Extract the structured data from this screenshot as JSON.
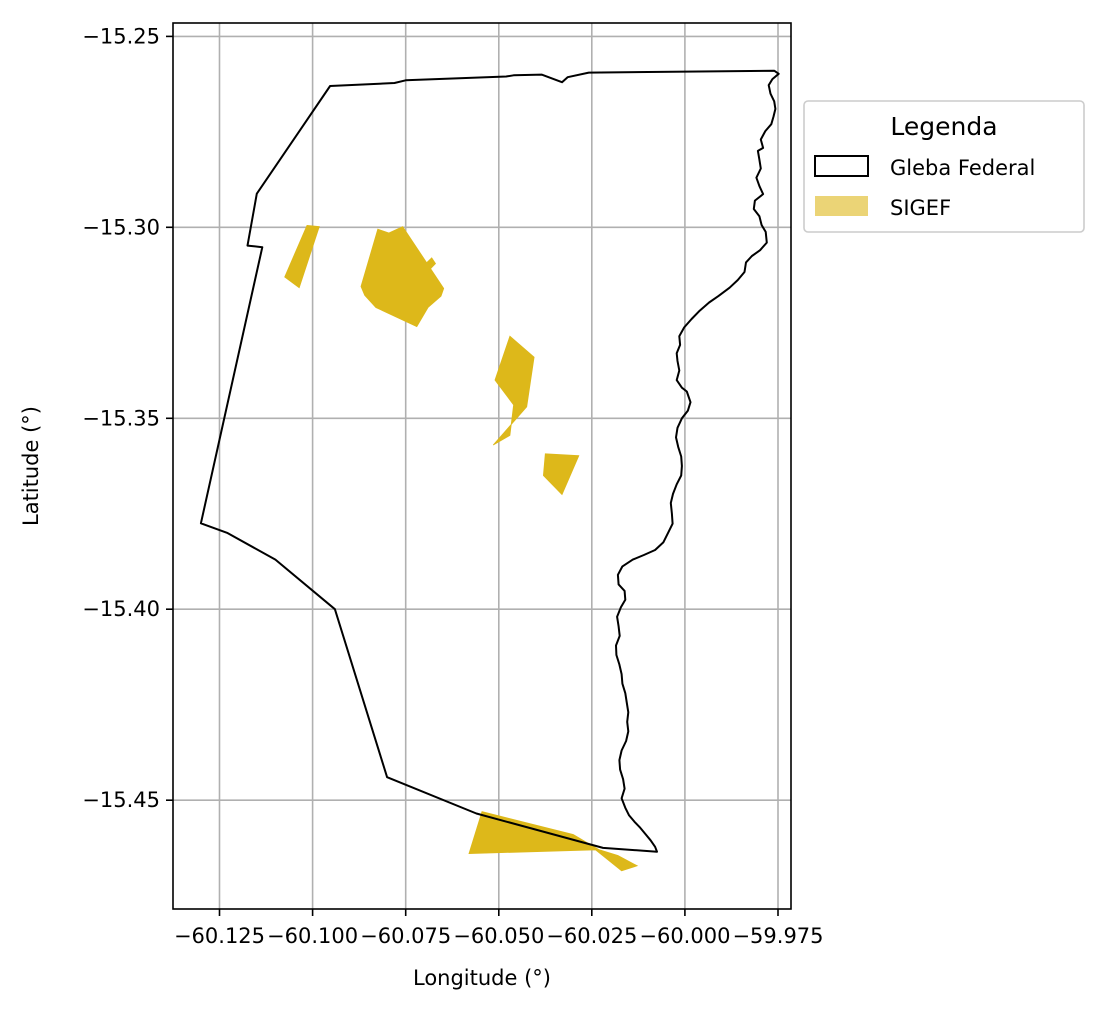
{
  "chart_data": {
    "type": "map",
    "title": "",
    "xlabel": "Longitude (°)",
    "ylabel": "Latitude (°)",
    "xlim": [
      -60.1375,
      -59.9715
    ],
    "ylim": [
      -15.4785,
      -15.2465
    ],
    "grid": true,
    "x_ticks": [
      {
        "value": -60.125,
        "label": "−60.125"
      },
      {
        "value": -60.1,
        "label": "−60.100"
      },
      {
        "value": -60.075,
        "label": "−60.075"
      },
      {
        "value": -60.05,
        "label": "−60.050"
      },
      {
        "value": -60.025,
        "label": "−60.025"
      },
      {
        "value": -60.0,
        "label": "−60.000"
      },
      {
        "value": -59.975,
        "label": "−59.975"
      }
    ],
    "y_ticks": [
      {
        "value": -15.25,
        "label": "−15.25"
      },
      {
        "value": -15.3,
        "label": "−15.30"
      },
      {
        "value": -15.35,
        "label": "−15.35"
      },
      {
        "value": -15.4,
        "label": "−15.40"
      },
      {
        "value": -15.45,
        "label": "−15.45"
      }
    ],
    "legend": {
      "title": "Legenda",
      "position": "outside-right-top",
      "entries": [
        {
          "label": "Gleba Federal",
          "style": "outline",
          "color": "#000000"
        },
        {
          "label": "SIGEF",
          "style": "fill",
          "color": "#DDB81A"
        }
      ]
    },
    "layers": {
      "gleba_federal": {
        "stroke": "#000000",
        "polygon": [
          [
            -60.0953,
            -15.263
          ],
          [
            -60.078,
            -15.2622
          ],
          [
            -60.075,
            -15.2615
          ],
          [
            -60.048,
            -15.2605
          ],
          [
            -60.046,
            -15.2602
          ],
          [
            -60.0385,
            -15.26
          ],
          [
            -60.033,
            -15.262
          ],
          [
            -60.0315,
            -15.2607
          ],
          [
            -60.0258,
            -15.2595
          ],
          [
            -59.976,
            -15.259
          ],
          [
            -59.9748,
            -15.2598
          ],
          [
            -59.9765,
            -15.2612
          ],
          [
            -59.9775,
            -15.2628
          ],
          [
            -59.977,
            -15.265
          ],
          [
            -59.976,
            -15.267
          ],
          [
            -59.9757,
            -15.269
          ],
          [
            -59.9762,
            -15.271
          ],
          [
            -59.9768,
            -15.273
          ],
          [
            -59.9784,
            -15.2748
          ],
          [
            -59.9796,
            -15.277
          ],
          [
            -59.979,
            -15.2792
          ],
          [
            -59.9804,
            -15.28
          ],
          [
            -59.98,
            -15.2823
          ],
          [
            -59.9796,
            -15.2846
          ],
          [
            -59.9808,
            -15.287
          ],
          [
            -59.98,
            -15.2892
          ],
          [
            -59.979,
            -15.2913
          ],
          [
            -59.9812,
            -15.293
          ],
          [
            -59.9815,
            -15.2952
          ],
          [
            -59.98,
            -15.2971
          ],
          [
            -59.9794,
            -15.2994
          ],
          [
            -59.9783,
            -15.3012
          ],
          [
            -59.978,
            -15.304
          ],
          [
            -59.9798,
            -15.306
          ],
          [
            -59.982,
            -15.3075
          ],
          [
            -59.9836,
            -15.3092
          ],
          [
            -59.984,
            -15.3117
          ],
          [
            -59.9858,
            -15.3138
          ],
          [
            -59.988,
            -15.3158
          ],
          [
            -59.991,
            -15.318
          ],
          [
            -59.9935,
            -15.3197
          ],
          [
            -59.996,
            -15.3218
          ],
          [
            -59.9982,
            -15.324
          ],
          [
            -60.0002,
            -15.3262
          ],
          [
            -60.0015,
            -15.3285
          ],
          [
            -60.0013,
            -15.3308
          ],
          [
            -60.0022,
            -15.333
          ],
          [
            -60.002,
            -15.335
          ],
          [
            -60.0015,
            -15.3375
          ],
          [
            -60.0022,
            -15.34
          ],
          [
            -60.0008,
            -15.342
          ],
          [
            -59.9995,
            -15.343
          ],
          [
            -59.9985,
            -15.3458
          ],
          [
            -59.9992,
            -15.348
          ],
          [
            -60.0008,
            -15.35
          ],
          [
            -60.002,
            -15.3525
          ],
          [
            -60.0024,
            -15.355
          ],
          [
            -60.0018,
            -15.3575
          ],
          [
            -60.001,
            -15.36
          ],
          [
            -60.0008,
            -15.3625
          ],
          [
            -60.001,
            -15.365
          ],
          [
            -60.0022,
            -15.3673
          ],
          [
            -60.0032,
            -15.3698
          ],
          [
            -60.0038,
            -15.3722
          ],
          [
            -60.0035,
            -15.375
          ],
          [
            -60.0033,
            -15.3776
          ],
          [
            -60.0045,
            -15.38
          ],
          [
            -60.0058,
            -15.3825
          ],
          [
            -60.008,
            -15.3845
          ],
          [
            -60.011,
            -15.3858
          ],
          [
            -60.014,
            -15.387
          ],
          [
            -60.0168,
            -15.3888
          ],
          [
            -60.018,
            -15.391
          ],
          [
            -60.0178,
            -15.3935
          ],
          [
            -60.0162,
            -15.3952
          ],
          [
            -60.016,
            -15.3975
          ],
          [
            -60.0172,
            -15.3995
          ],
          [
            -60.0182,
            -15.402
          ],
          [
            -60.0178,
            -15.4045
          ],
          [
            -60.0175,
            -15.407
          ],
          [
            -60.0185,
            -15.4095
          ],
          [
            -60.0184,
            -15.412
          ],
          [
            -60.0176,
            -15.4145
          ],
          [
            -60.017,
            -15.417
          ],
          [
            -60.0168,
            -15.4195
          ],
          [
            -60.016,
            -15.422
          ],
          [
            -60.0156,
            -15.4245
          ],
          [
            -60.0152,
            -15.427
          ],
          [
            -60.0155,
            -15.4295
          ],
          [
            -60.0152,
            -15.432
          ],
          [
            -60.0158,
            -15.4345
          ],
          [
            -60.017,
            -15.437
          ],
          [
            -60.0176,
            -15.4395
          ],
          [
            -60.0174,
            -15.442
          ],
          [
            -60.0166,
            -15.4445
          ],
          [
            -60.0162,
            -15.447
          ],
          [
            -60.017,
            -15.4495
          ],
          [
            -60.016,
            -15.452
          ],
          [
            -60.015,
            -15.454
          ],
          [
            -60.0135,
            -15.4557
          ],
          [
            -60.012,
            -15.4572
          ],
          [
            -60.0105,
            -15.459
          ],
          [
            -60.0092,
            -15.4605
          ],
          [
            -60.008,
            -15.4622
          ],
          [
            -60.0075,
            -15.4635
          ],
          [
            -60.022,
            -15.4625
          ],
          [
            -60.056,
            -15.4535
          ],
          [
            -60.08,
            -15.444
          ],
          [
            -60.094,
            -15.4
          ],
          [
            -60.11,
            -15.387
          ],
          [
            -60.123,
            -15.38
          ],
          [
            -60.13,
            -15.3775
          ],
          [
            -60.1135,
            -15.3052
          ],
          [
            -60.1175,
            -15.3048
          ],
          [
            -60.115,
            -15.2912
          ]
        ]
      },
      "sigef": {
        "fill": "#DDB81A",
        "polygons": [
          [
            [
              -60.1015,
              -15.2995
            ],
            [
              -60.0982,
              -15.2998
            ],
            [
              -60.1036,
              -15.3158
            ],
            [
              -60.1075,
              -15.313
            ]
          ],
          [
            [
              -60.0795,
              -15.3015
            ],
            [
              -60.0758,
              -15.2998
            ],
            [
              -60.0648,
              -15.316
            ],
            [
              -60.0655,
              -15.318
            ],
            [
              -60.069,
              -15.321
            ],
            [
              -60.072,
              -15.326
            ],
            [
              -60.083,
              -15.321
            ],
            [
              -60.086,
              -15.3178
            ],
            [
              -60.087,
              -15.3155
            ],
            [
              -60.0825,
              -15.3005
            ]
          ],
          [
            [
              -60.068,
              -15.308
            ],
            [
              -60.067,
              -15.3095
            ],
            [
              -60.07,
              -15.3125
            ],
            [
              -60.0712,
              -15.311
            ]
          ],
          [
            [
              -60.047,
              -15.3285
            ],
            [
              -60.051,
              -15.34
            ],
            [
              -60.046,
              -15.3465
            ],
            [
              -60.047,
              -15.3545
            ],
            [
              -60.0515,
              -15.357
            ],
            [
              -60.0425,
              -15.347
            ],
            [
              -60.0405,
              -15.334
            ]
          ],
          [
            [
              -60.0285,
              -15.3598
            ],
            [
              -60.0375,
              -15.3593
            ],
            [
              -60.038,
              -15.365
            ],
            [
              -60.033,
              -15.37
            ]
          ],
          [
            [
              -60.0545,
              -15.453
            ],
            [
              -60.058,
              -15.464
            ],
            [
              -60.024,
              -15.463
            ],
            [
              -60.017,
              -15.4685
            ],
            [
              -60.0128,
              -15.4672
            ],
            [
              -60.018,
              -15.4645
            ],
            [
              -60.023,
              -15.463
            ],
            [
              -60.03,
              -15.459
            ]
          ]
        ]
      }
    }
  }
}
